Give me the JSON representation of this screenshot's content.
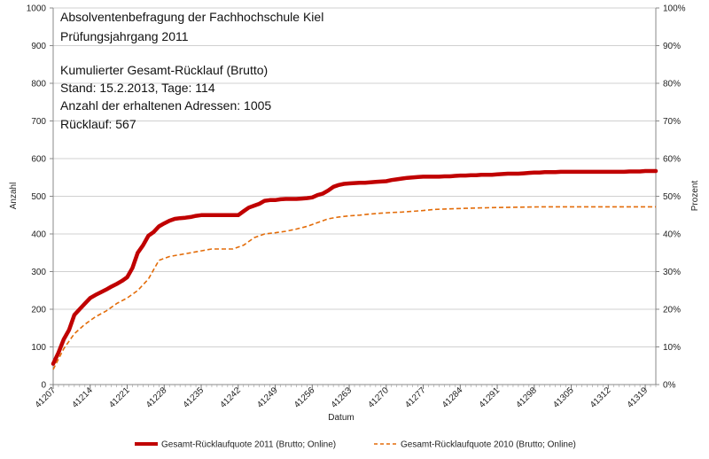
{
  "chart_data": {
    "type": "line",
    "annotations": [
      "Absolventenbefragung der Fachhochschule Kiel",
      "Prüfungsjahrgang 2011",
      "Kumulierter Gesamt-Rücklauf (Brutto)",
      "Stand: 15.2.2013, Tage: 114",
      "Anzahl der erhaltenen Adressen: 1005",
      "Rücklauf: 567"
    ],
    "xlabel": "Datum",
    "ylabel": "Anzahl",
    "y2label": "Prozent",
    "xlim": [
      41207,
      41321
    ],
    "ylim": [
      0,
      1000
    ],
    "y2lim": [
      0,
      100
    ],
    "x_ticks": [
      "41207",
      "41214",
      "41221",
      "41228",
      "41235",
      "41242",
      "41249",
      "41256",
      "41263",
      "41270",
      "41277",
      "41284",
      "41291",
      "41298",
      "41305",
      "41312",
      "41319"
    ],
    "y_ticks": [
      "0",
      "100",
      "200",
      "300",
      "400",
      "500",
      "600",
      "700",
      "800",
      "900",
      "1000"
    ],
    "y2_ticks": [
      "0%",
      "10%",
      "20%",
      "30%",
      "40%",
      "50%",
      "60%",
      "70%",
      "80%",
      "90%",
      "100%"
    ],
    "grid": true,
    "legend_position": "bottom",
    "series": [
      {
        "name": "Gesamt-Rücklaufquote 2011 (Brutto; Online)",
        "color": "#c00000",
        "style": "solid",
        "x": [
          41207,
          41208,
          41209,
          41210,
          41211,
          41212,
          41213,
          41214,
          41215,
          41216,
          41217,
          41218,
          41219,
          41220,
          41221,
          41222,
          41223,
          41224,
          41225,
          41226,
          41227,
          41228,
          41229,
          41230,
          41231,
          41232,
          41233,
          41234,
          41235,
          41236,
          41237,
          41238,
          41239,
          41240,
          41241,
          41242,
          41243,
          41244,
          41245,
          41246,
          41247,
          41248,
          41249,
          41250,
          41251,
          41252,
          41253,
          41254,
          41255,
          41256,
          41257,
          41258,
          41259,
          41260,
          41261,
          41262,
          41263,
          41264,
          41265,
          41266,
          41267,
          41268,
          41269,
          41270,
          41271,
          41272,
          41273,
          41274,
          41275,
          41276,
          41277,
          41278,
          41279,
          41280,
          41281,
          41282,
          41283,
          41284,
          41285,
          41286,
          41287,
          41288,
          41289,
          41290,
          41291,
          41292,
          41293,
          41294,
          41295,
          41296,
          41297,
          41298,
          41299,
          41300,
          41301,
          41302,
          41303,
          41304,
          41305,
          41306,
          41307,
          41308,
          41309,
          41310,
          41311,
          41312,
          41313,
          41314,
          41315,
          41316,
          41317,
          41318,
          41319,
          41320,
          41321
        ],
        "values": [
          55,
          85,
          120,
          145,
          185,
          200,
          215,
          230,
          238,
          245,
          252,
          260,
          267,
          275,
          285,
          310,
          350,
          370,
          395,
          405,
          420,
          428,
          435,
          440,
          442,
          443,
          445,
          448,
          450,
          450,
          450,
          450,
          450,
          450,
          450,
          450,
          460,
          470,
          475,
          480,
          488,
          490,
          490,
          492,
          493,
          493,
          493,
          494,
          495,
          497,
          503,
          507,
          515,
          525,
          530,
          533,
          534,
          535,
          536,
          536,
          537,
          538,
          539,
          540,
          543,
          545,
          547,
          549,
          550,
          551,
          552,
          552,
          552,
          552,
          553,
          553,
          554,
          555,
          555,
          556,
          556,
          557,
          557,
          557,
          558,
          559,
          560,
          560,
          560,
          561,
          562,
          563,
          563,
          564,
          564,
          564,
          565,
          565,
          565,
          565,
          565,
          565,
          565,
          565,
          565,
          565,
          565,
          565,
          565,
          566,
          566,
          566,
          567,
          567,
          567
        ]
      },
      {
        "name": "Gesamt-Rücklaufquote 2010 (Brutto; Online)",
        "color": "#e36c09",
        "style": "dashed",
        "x": [
          41207,
          41209,
          41211,
          41213,
          41215,
          41217,
          41219,
          41221,
          41223,
          41225,
          41227,
          41229,
          41231,
          41233,
          41235,
          41237,
          41239,
          41241,
          41243,
          41245,
          41247,
          41249,
          41251,
          41253,
          41255,
          41257,
          41259,
          41261,
          41263,
          41265,
          41267,
          41269,
          41271,
          41273,
          41275,
          41277,
          41279,
          41281,
          41283,
          41285,
          41290,
          41295,
          41300,
          41305,
          41310,
          41315,
          41321
        ],
        "values": [
          40,
          95,
          135,
          160,
          180,
          195,
          215,
          230,
          250,
          280,
          330,
          340,
          345,
          350,
          355,
          360,
          360,
          360,
          370,
          390,
          400,
          403,
          407,
          413,
          420,
          430,
          440,
          445,
          448,
          450,
          453,
          455,
          457,
          458,
          460,
          462,
          465,
          466,
          467,
          468,
          470,
          471,
          472,
          472,
          472,
          472,
          472
        ]
      }
    ]
  }
}
